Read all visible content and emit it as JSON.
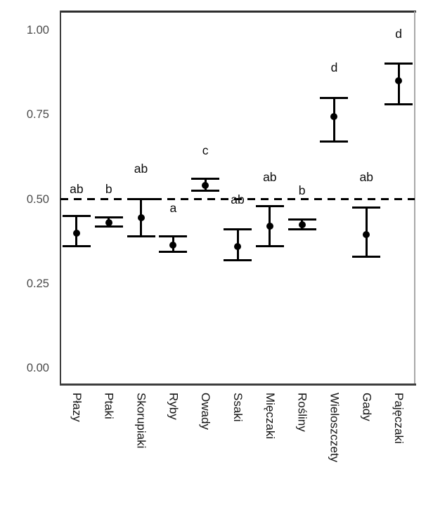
{
  "figure": {
    "background": "#ffffff",
    "title": ""
  },
  "style": {
    "point_color": "#000000",
    "reference_line_color": "#000000",
    "y_axis_text_color": "#4a4a4a",
    "x_axis_text_color": "#141414",
    "panel_border_top_color": "#2e2e2e",
    "panel_border_left_color": "#3d3d3d",
    "panel_border_bottom_color": "#3d3d3d",
    "panel_border_right_color": "#a8a8a8"
  },
  "chart_data": {
    "type": "scatter",
    "subtype": "pointrange-with-error-bars",
    "title": "",
    "xlabel": "",
    "ylabel": "",
    "ylim": [
      0,
      1
    ],
    "grid": false,
    "legend": null,
    "y_ticks": [
      {
        "label": "1.00",
        "value": 1.0
      },
      {
        "label": "0.75",
        "value": 0.75
      },
      {
        "label": "0.50",
        "value": 0.5
      },
      {
        "label": "0.25",
        "value": 0.25
      },
      {
        "label": "0.00",
        "value": 0.0
      }
    ],
    "reference_line": {
      "value": 0.5,
      "style": "dashed",
      "color": "#000000"
    },
    "categories": [
      "Płazy",
      "Ptaki",
      "Skorupiaki",
      "Ryby",
      "Owady",
      "Ssaki",
      "Mięczaki",
      "Rośliny",
      "Wieloszczety",
      "Gady",
      "Pajęczaki"
    ],
    "points": [
      {
        "category": "Płazy",
        "mean": 0.4,
        "ci_low": 0.36,
        "ci_high": 0.45,
        "letter": "ab",
        "letter_y": 0.53
      },
      {
        "category": "Ptaki",
        "mean": 0.43,
        "ci_low": 0.42,
        "ci_high": 0.445,
        "letter": "b",
        "letter_y": 0.53
      },
      {
        "category": "Skorupiaki",
        "mean": 0.445,
        "ci_low": 0.39,
        "ci_high": 0.5,
        "letter": "ab",
        "letter_y": 0.59
      },
      {
        "category": "Ryby",
        "mean": 0.365,
        "ci_low": 0.345,
        "ci_high": 0.39,
        "letter": "a",
        "letter_y": 0.475
      },
      {
        "category": "Owady",
        "mean": 0.54,
        "ci_low": 0.525,
        "ci_high": 0.56,
        "letter": "c",
        "letter_y": 0.645
      },
      {
        "category": "Ssaki",
        "mean": 0.36,
        "ci_low": 0.32,
        "ci_high": 0.41,
        "letter": "ab",
        "letter_y": 0.5
      },
      {
        "category": "Mięczaki",
        "mean": 0.42,
        "ci_low": 0.36,
        "ci_high": 0.48,
        "letter": "ab",
        "letter_y": 0.565
      },
      {
        "category": "Rośliny",
        "mean": 0.425,
        "ci_low": 0.41,
        "ci_high": 0.44,
        "letter": "b",
        "letter_y": 0.525
      },
      {
        "category": "Wieloszczety",
        "mean": 0.745,
        "ci_low": 0.67,
        "ci_high": 0.8,
        "letter": "d",
        "letter_y": 0.89
      },
      {
        "category": "Gady",
        "mean": 0.395,
        "ci_low": 0.33,
        "ci_high": 0.475,
        "letter": "ab",
        "letter_y": 0.565
      },
      {
        "category": "Pajęczaki",
        "mean": 0.85,
        "ci_low": 0.78,
        "ci_high": 0.9,
        "letter": "d",
        "letter_y": 0.99
      }
    ]
  }
}
